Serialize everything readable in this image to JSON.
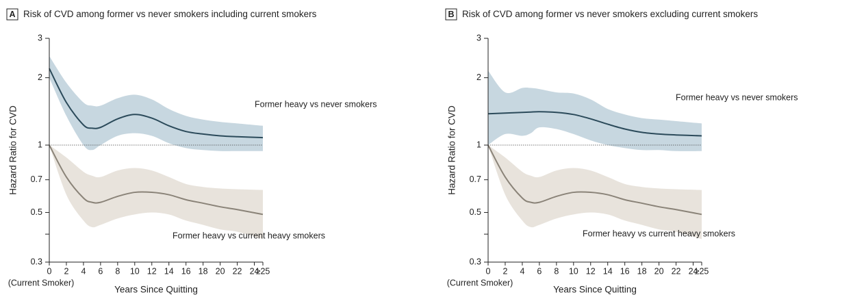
{
  "chart_data": [
    {
      "type": "line",
      "panel": "A",
      "title": "Risk of CVD among former vs never smokers including current smokers",
      "xlabel": "Years Since Quitting",
      "ylabel": "Hazard Ratio for CVD",
      "x_annotation": "(Current Smoker)",
      "x": [
        0,
        2,
        4,
        5,
        6,
        8,
        10,
        12,
        14,
        16,
        18,
        20,
        22,
        25
      ],
      "series": [
        {
          "name": "Former heavy vs never smokers",
          "color": "#2b4a5a",
          "band_color": "#c7d7e0",
          "values": [
            2.2,
            1.55,
            1.23,
            1.19,
            1.2,
            1.31,
            1.37,
            1.32,
            1.22,
            1.15,
            1.12,
            1.1,
            1.09,
            1.08
          ],
          "upper": [
            2.5,
            1.9,
            1.55,
            1.5,
            1.5,
            1.62,
            1.68,
            1.6,
            1.45,
            1.35,
            1.3,
            1.27,
            1.25,
            1.22
          ],
          "lower": [
            2.0,
            1.35,
            1.0,
            0.95,
            1.0,
            1.1,
            1.13,
            1.1,
            1.02,
            0.97,
            0.95,
            0.94,
            0.94,
            0.94
          ]
        },
        {
          "name": "Former heavy vs current heavy smokers",
          "color": "#8a8378",
          "band_color": "#e8e3dc",
          "values": [
            1,
            0.72,
            0.58,
            0.555,
            0.555,
            0.59,
            0.615,
            0.615,
            0.6,
            0.57,
            0.55,
            0.53,
            0.515,
            0.49
          ],
          "upper": [
            1,
            0.88,
            0.76,
            0.73,
            0.72,
            0.77,
            0.79,
            0.77,
            0.72,
            0.67,
            0.65,
            0.64,
            0.635,
            0.63
          ],
          "lower": [
            1,
            0.6,
            0.46,
            0.43,
            0.44,
            0.47,
            0.49,
            0.5,
            0.49,
            0.46,
            0.44,
            0.42,
            0.41,
            0.38
          ]
        }
      ],
      "xlim": [
        0,
        25
      ],
      "ylim": [
        0.3,
        3
      ],
      "yscale": "log",
      "refline": 1,
      "xticks": [
        0,
        2,
        4,
        6,
        8,
        10,
        12,
        14,
        16,
        18,
        20,
        22,
        24,
        {
          "value": 25,
          "label": "≥25"
        }
      ],
      "yticks": [
        0.3,
        0.5,
        0.7,
        1,
        2,
        3
      ],
      "minor_yticks": [
        0.4
      ]
    },
    {
      "type": "line",
      "panel": "B",
      "title": "Risk of CVD among former vs never smokers excluding current smokers",
      "xlabel": "Years Since Quitting",
      "ylabel": "Hazard Ratio for CVD",
      "x_annotation": "(Current Smoker)",
      "x": [
        0,
        2,
        4,
        5,
        6,
        8,
        10,
        12,
        14,
        16,
        18,
        20,
        22,
        25
      ],
      "series": [
        {
          "name": "Former heavy vs never smokers",
          "color": "#2b4a5a",
          "band_color": "#c7d7e0",
          "values": [
            1.38,
            1.39,
            1.4,
            1.405,
            1.41,
            1.4,
            1.37,
            1.31,
            1.24,
            1.18,
            1.14,
            1.12,
            1.11,
            1.1
          ],
          "upper": [
            2.15,
            1.72,
            1.8,
            1.8,
            1.78,
            1.72,
            1.7,
            1.6,
            1.45,
            1.37,
            1.32,
            1.3,
            1.28,
            1.25
          ],
          "lower": [
            1.0,
            1.12,
            1.1,
            1.13,
            1.2,
            1.18,
            1.12,
            1.05,
            1.0,
            0.97,
            0.95,
            0.95,
            0.94,
            0.94
          ]
        },
        {
          "name": "Former heavy vs current heavy smokers",
          "color": "#8a8378",
          "band_color": "#e8e3dc",
          "values": [
            1,
            0.72,
            0.58,
            0.555,
            0.555,
            0.59,
            0.615,
            0.615,
            0.6,
            0.57,
            0.55,
            0.53,
            0.515,
            0.49
          ],
          "upper": [
            1,
            0.88,
            0.76,
            0.73,
            0.72,
            0.77,
            0.79,
            0.77,
            0.72,
            0.67,
            0.65,
            0.64,
            0.635,
            0.63
          ],
          "lower": [
            1,
            0.6,
            0.46,
            0.43,
            0.44,
            0.47,
            0.49,
            0.5,
            0.49,
            0.46,
            0.44,
            0.42,
            0.41,
            0.38
          ]
        }
      ],
      "xlim": [
        0,
        25
      ],
      "ylim": [
        0.3,
        3
      ],
      "yscale": "log",
      "refline": 1,
      "xticks": [
        0,
        2,
        4,
        6,
        8,
        10,
        12,
        14,
        16,
        18,
        20,
        22,
        24,
        {
          "value": 25,
          "label": "≥25"
        }
      ],
      "yticks": [
        0.3,
        0.5,
        0.7,
        1,
        2,
        3
      ],
      "minor_yticks": [
        0.4
      ]
    }
  ]
}
